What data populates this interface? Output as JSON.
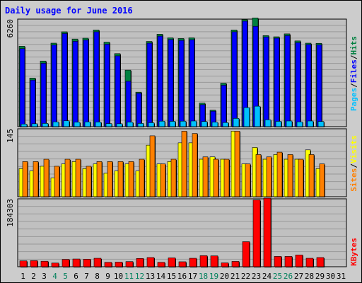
{
  "title": "Daily usage for June 2016",
  "colors": {
    "background": "#cccccc",
    "plot": "#c0c0c0",
    "hits": "#008040",
    "files": "#0000ff",
    "pages": "#00c0ff",
    "visits": "#ffff00",
    "sites": "#ff8000",
    "kbytes": "#ff0000",
    "weekend_label": "#00805c",
    "weekday_label": "#000000",
    "title": "#0000ff"
  },
  "chart_data": [
    {
      "type": "bar",
      "panel": "requests",
      "max_label": "6260",
      "ylim": [
        0,
        6260
      ],
      "grid": true,
      "legend_labels": [
        "Pages",
        "/",
        "Files",
        "/",
        "Hits"
      ],
      "series": [
        {
          "name": "Hits",
          "values": [
            4680,
            2830,
            3820,
            4860,
            5520,
            5100,
            5150,
            5630,
            4920,
            4250,
            3290,
            2010,
            4960,
            5380,
            5170,
            5130,
            5170,
            1370,
            960,
            2530,
            5630,
            6240,
            6330,
            5300,
            5230,
            5400,
            4990,
            4860,
            4850
          ]
        },
        {
          "name": "Files",
          "values": [
            4540,
            2710,
            3690,
            4750,
            5420,
            4970,
            5040,
            5520,
            4800,
            4120,
            2640,
            1940,
            4860,
            5270,
            5070,
            5020,
            5060,
            1280,
            900,
            2410,
            5520,
            6140,
            5840,
            5220,
            5150,
            5300,
            4890,
            4780,
            4760
          ]
        },
        {
          "name": "Pages",
          "values": [
            150,
            170,
            190,
            280,
            340,
            260,
            280,
            270,
            180,
            170,
            260,
            190,
            230,
            320,
            310,
            320,
            330,
            300,
            260,
            240,
            480,
            1110,
            1190,
            400,
            310,
            330,
            280,
            330,
            300
          ]
        }
      ]
    },
    {
      "type": "bar",
      "panel": "sites_visits",
      "max_label": "145",
      "ylim": [
        0,
        145
      ],
      "grid": true,
      "legend_labels": [
        "Sites",
        "/",
        "Visits"
      ],
      "series": [
        {
          "name": "Visits",
          "values": [
            60,
            55,
            65,
            40,
            70,
            75,
            60,
            70,
            50,
            55,
            70,
            55,
            110,
            70,
            75,
            115,
            115,
            80,
            85,
            80,
            140,
            70,
            105,
            80,
            90,
            80,
            80,
            100,
            60
          ]
        },
        {
          "name": "Sites",
          "values": [
            75,
            75,
            80,
            65,
            80,
            80,
            65,
            75,
            75,
            75,
            75,
            80,
            130,
            70,
            80,
            140,
            135,
            85,
            80,
            80,
            140,
            70,
            90,
            85,
            95,
            90,
            80,
            90,
            70
          ]
        }
      ]
    },
    {
      "type": "bar",
      "panel": "kbytes",
      "max_label": "184303",
      "ylim": [
        0,
        184303
      ],
      "grid": true,
      "legend_labels": [
        "KBytes"
      ],
      "series": [
        {
          "name": "KBytes",
          "values": [
            16000,
            16500,
            15000,
            10000,
            20000,
            21000,
            20500,
            23000,
            12000,
            12500,
            14000,
            22500,
            25000,
            12000,
            24000,
            13500,
            23000,
            30000,
            29500,
            10500,
            14500,
            68000,
            181000,
            186000,
            28000,
            28000,
            32000,
            23000,
            25000
          ]
        }
      ]
    }
  ],
  "x_axis": {
    "days": [
      "1",
      "2",
      "3",
      "4",
      "5",
      "6",
      "7",
      "8",
      "9",
      "10",
      "11",
      "12",
      "13",
      "14",
      "15",
      "16",
      "17",
      "18",
      "19",
      "20",
      "21",
      "22",
      "23",
      "24",
      "25",
      "26",
      "27",
      "28",
      "29",
      "30",
      "31"
    ],
    "weekend_days": [
      "4",
      "5",
      "11",
      "12",
      "18",
      "19",
      "25",
      "26"
    ]
  }
}
